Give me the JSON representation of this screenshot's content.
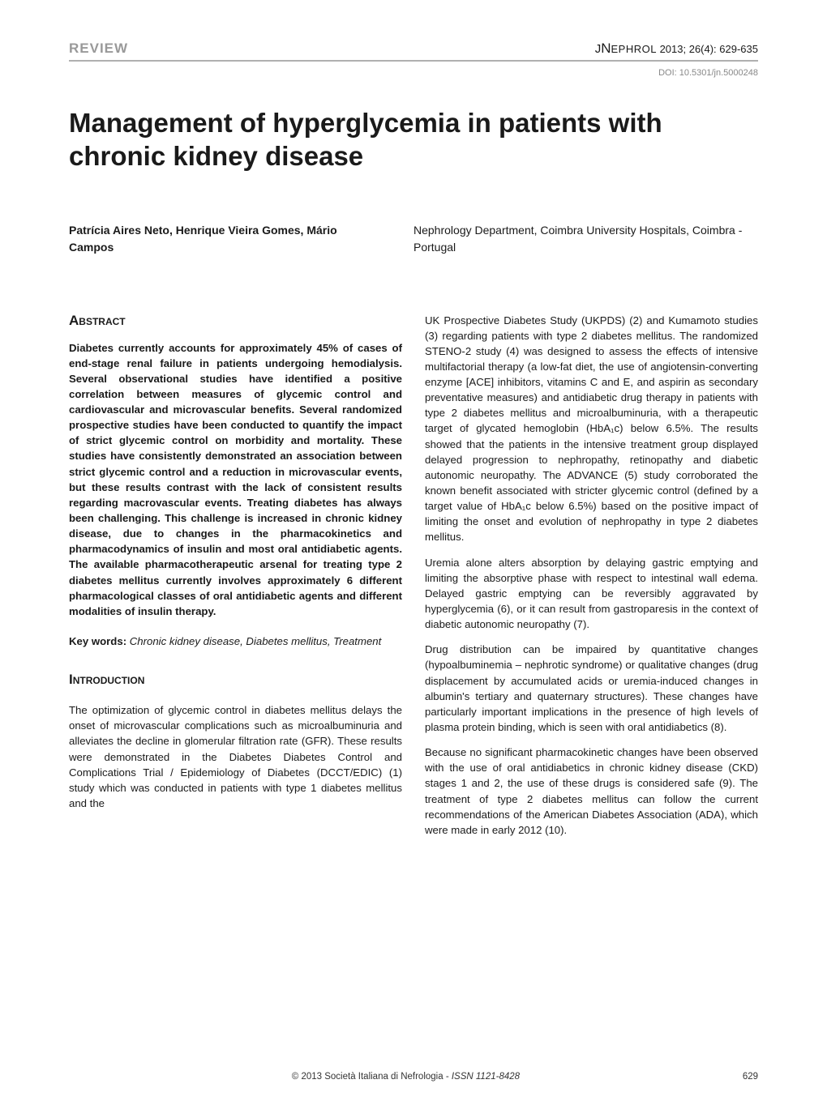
{
  "header": {
    "section_label": "REVIEW",
    "journal_j": "J",
    "journal_n": "N",
    "journal_rest": "EPHROL",
    "citation": " 2013; 26(4): 629-635",
    "doi": "DOI: 10.5301/jn.5000248"
  },
  "title": "Management of hyperglycemia in patients with chronic kidney disease",
  "authors": "Patrícia Aires Neto, Henrique Vieira Gomes, Mário Campos",
  "affiliation": "Nephrology Department, Coimbra University Hospitals, Coimbra - Portugal",
  "abstract_heading": "Abstract",
  "abstract_body": "Diabetes currently accounts for approximately 45% of cases of end-stage renal failure in patients undergoing hemodialysis. Several observational studies have identified a positive correlation between measures of glycemic control and cardiovascular and microvascular benefits. Several randomized prospective studies have been conducted to quantify the impact of strict glycemic control on morbidity and mortality. These studies have consistently demonstrated an association between strict glycemic control and a reduction in microvascular events, but these results contrast with the lack of consistent results regarding macrovascular events. Treating diabetes has always been challenging. This challenge is increased in chronic kidney disease, due to changes in the pharmacokinetics and pharmacodynamics of insulin and most oral antidiabetic agents. The available pharmacotherapeutic arsenal for treating type 2 diabetes mellitus currently involves approximately 6 different pharmacological classes of oral antidiabetic agents and different modalities of insulin therapy.",
  "keywords_label": "Key words: ",
  "keywords_values": "Chronic kidney disease, Diabetes mellitus, Treatment",
  "intro_heading": "Introduction",
  "intro_p1": "The optimization of glycemic control in diabetes mellitus delays the onset of microvascular complications such as microalbuminuria and alleviates the decline in glomerular filtration rate (GFR). These results were demonstrated in the Diabetes Diabetes Control and Complications Trial / Epidemiology of Diabetes (DCCT/EDIC) (1) study which was conducted in patients with type 1 diabetes mellitus and the",
  "col2_p1": "UK Prospective Diabetes Study (UKPDS) (2) and Kumamoto studies (3) regarding patients with type 2 diabetes mellitus. The randomized STENO-2 study (4) was designed to assess the effects of intensive multifactorial therapy (a low-fat diet, the use of angiotensin-converting enzyme [ACE] inhibitors, vitamins C and E, and aspirin as secondary preventative measures) and antidiabetic drug therapy in patients with type 2 diabetes mellitus and microalbuminuria, with a therapeutic target of glycated hemoglobin (HbA₁c) below 6.5%. The results showed that the patients in the intensive treatment group displayed delayed progression to nephropathy, retinopathy and diabetic autonomic neuropathy. The ADVANCE (5) study corroborated the known benefit associated with stricter glycemic control (defined by a target value of HbA₁c below 6.5%) based on the positive impact of limiting the onset and evolution of nephropathy in type 2 diabetes mellitus.",
  "col2_p2": "Uremia alone alters absorption by delaying gastric emptying and limiting the absorptive phase with respect to intestinal wall edema. Delayed gastric emptying can be reversibly aggravated by hyperglycemia (6), or it can result from gastroparesis in the context of diabetic autonomic neuropathy (7).",
  "col2_p3": "Drug distribution can be impaired by quantitative changes (hypoalbuminemia – nephrotic syndrome) or qualitative changes (drug displacement by accumulated acids or uremia-induced changes in albumin's tertiary and quaternary structures). These changes have particularly important implications in the presence of high levels of plasma protein binding, which is seen with oral antidiabetics (8).",
  "col2_p4": "Because no significant pharmacokinetic changes have been observed with the use of oral antidiabetics in chronic kidney disease (CKD) stages 1 and 2, the use of these drugs is considered safe (9). The treatment of type 2 diabetes mellitus can follow the current recommendations of the American Diabetes Association (ADA), which were made in early 2012 (10).",
  "footer": {
    "copyright": "© 2013 Società Italiana di Nefrologia - ",
    "issn": "ISSN 1121-8428",
    "page_num": "629"
  },
  "colors": {
    "text": "#1a1a1a",
    "muted": "#999999",
    "doi": "#888888",
    "rule": "#b0b0b0",
    "background": "#ffffff"
  },
  "typography": {
    "title_fontsize": 33,
    "heading_fontsize": 17,
    "body_fontsize": 13.2,
    "footer_fontsize": 11.5,
    "doi_fontsize": 11
  }
}
